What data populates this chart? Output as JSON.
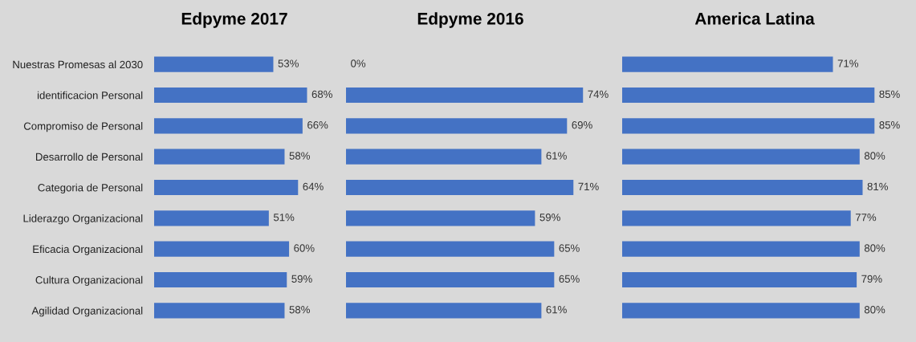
{
  "chart_data": [
    {
      "type": "bar",
      "orientation": "horizontal",
      "title": "Edpyme 2017",
      "categories": [
        "Nuestras Promesas al 2030",
        "identificacion Personal",
        "Compromiso de Personal",
        "Desarrollo de Personal",
        "Categoria de Personal",
        "Liderazgo Organizacional",
        "Eficacia Organizacional",
        "Cultura Organizacional",
        "Agilidad Organizacional"
      ],
      "values": [
        53,
        68,
        66,
        58,
        64,
        51,
        60,
        59,
        58
      ],
      "color": "#4472c4",
      "value_labels": [
        "53%",
        "68%",
        "66%",
        "58%",
        "64%",
        "51%",
        "60%",
        "59%",
        "58%"
      ],
      "tick_labels": "y"
    },
    {
      "type": "bar",
      "orientation": "horizontal",
      "title": "Edpyme 2016",
      "categories": [
        null,
        null,
        null,
        null,
        null,
        null,
        null,
        null,
        null
      ],
      "values": [
        0,
        74,
        69,
        61,
        71,
        59,
        65,
        65,
        61
      ],
      "color": "#4472c4",
      "value_labels": [
        "0%",
        "74%",
        "69%",
        "61%",
        "71%",
        "59%",
        "65%",
        "65%",
        "61%"
      ],
      "tick_labels": false
    },
    {
      "type": "bar",
      "orientation": "horizontal",
      "title": "America Latina",
      "categories": [
        null,
        null,
        null,
        null,
        null,
        null,
        null,
        null,
        null
      ],
      "values": [
        71,
        85,
        85,
        80,
        81,
        77,
        80,
        79,
        80
      ],
      "color": "#4472c4",
      "value_labels": [
        "71%",
        "85%",
        "85%",
        "80%",
        "81%",
        "77%",
        "80%",
        "79%",
        "80%"
      ],
      "tick_labels": false
    }
  ]
}
